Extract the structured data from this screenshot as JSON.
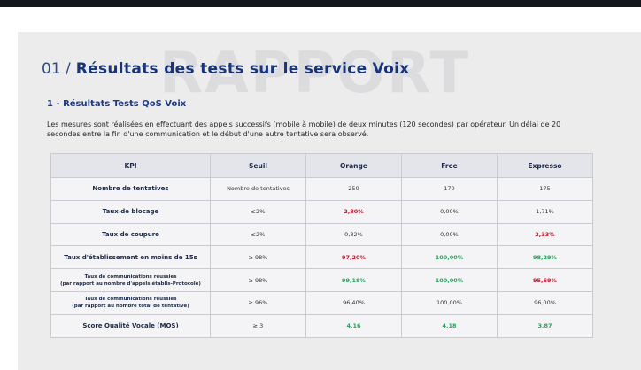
{
  "header": {
    "watermark": "RAPPORT",
    "section_number": "01 /",
    "title": "Résultats des tests sur le service Voix",
    "subtitle": "1 - Résultats Tests QoS Voix",
    "intro": "Les mesures sont réalisées en effectuant des appels successifs (mobile à mobile) de deux minutes (120 secondes) par opérateur. Un délai de 20 secondes entre la fin d'une communication et le début d'une autre tentative sera observé."
  },
  "table": {
    "columns": [
      "KPI",
      "Seuil",
      "Orange",
      "Free",
      "Expresso"
    ],
    "rows": [
      {
        "kpi": "Nombre de tentatives",
        "kpi_note": "",
        "seuil": "Nombre de tentatives",
        "orange": "250",
        "free": "170",
        "expresso": "175"
      },
      {
        "kpi": "Taux de blocage",
        "kpi_note": "",
        "seuil": "≤2%",
        "orange": "2,80%",
        "free": "0,00%",
        "expresso": "1,71%"
      },
      {
        "kpi": "Taux de coupure",
        "kpi_note": "",
        "seuil": "≤2%",
        "orange": "0,82%",
        "free": "0,00%",
        "expresso": "2,33%"
      },
      {
        "kpi": "Taux d'établissement en moins de 15s",
        "kpi_note": "",
        "seuil": "≥ 98%",
        "orange": "97,20%",
        "free": "100,00%",
        "expresso": "98,29%"
      },
      {
        "kpi": "Taux de communications réussies",
        "kpi_note": "(par rapport au nombre d'appels établis-Protocole)",
        "seuil": "≥ 98%",
        "orange": "99,18%",
        "free": "100,00%",
        "expresso": "95,69%"
      },
      {
        "kpi": "Taux de communications réussies",
        "kpi_note": "(par rapport au nombre total de tentative)",
        "seuil": "≥ 96%",
        "orange": "96,40%",
        "free": "100,00%",
        "expresso": "96,00%"
      },
      {
        "kpi": "Score Qualité Vocale (MOS)",
        "kpi_note": "",
        "seuil": "≥ 3",
        "orange": "4,16",
        "free": "4,18",
        "expresso": "3,87"
      }
    ]
  },
  "colors": {
    "title": "#18347a",
    "fail": "#c3172b",
    "pass": "#27a35c"
  }
}
